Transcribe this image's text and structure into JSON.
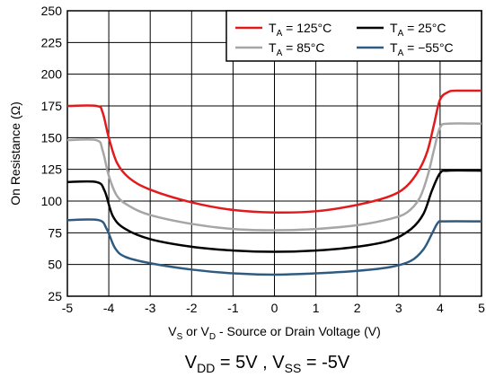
{
  "chart_data": {
    "type": "line",
    "xlabel": {
      "base1": "V",
      "sub1": "S",
      "mid": " or V",
      "sub2": "D",
      "rest": " - Source or Drain Voltage (V)"
    },
    "ylabel": "On Resistance (Ω)",
    "caption": {
      "p1": "V",
      "s1": "DD",
      "p2": " = 5V , V",
      "s2": "SS",
      "p3": " = -5V"
    },
    "xlim": [
      -5,
      5
    ],
    "ylim": [
      25,
      250
    ],
    "xticks": [
      "-5",
      "-4",
      "-3",
      "-2",
      "-1",
      "0",
      "1",
      "2",
      "3",
      "4",
      "5"
    ],
    "yticks": [
      "25",
      "50",
      "75",
      "100",
      "125",
      "150",
      "175",
      "200",
      "225",
      "250"
    ],
    "grid": true,
    "legend_position": "top-right",
    "series": [
      {
        "name": "125°C",
        "legend_prefix": "T",
        "legend_sub": "A",
        "legend_eq": " = ",
        "color": "#e31a1c",
        "x": [
          -5,
          -4.3,
          -4.15,
          -4.0,
          -3.8,
          -3.5,
          -3.0,
          -2.0,
          -1.0,
          0,
          1.0,
          2.0,
          2.8,
          3.2,
          3.5,
          3.7,
          3.85,
          4.0,
          4.2,
          4.4,
          5
        ],
        "y": [
          175,
          175,
          170,
          150,
          130,
          118,
          109,
          99,
          93,
          91,
          92,
          97,
          104,
          112,
          125,
          140,
          160,
          180,
          186,
          187,
          187
        ]
      },
      {
        "name": "25°C",
        "legend_prefix": "T",
        "legend_sub": "A",
        "legend_eq": " = ",
        "color": "#000000",
        "x": [
          -5,
          -4.3,
          -4.1,
          -3.9,
          -3.6,
          -3.0,
          -2.0,
          -1.0,
          0,
          1.0,
          2.0,
          2.8,
          3.3,
          3.6,
          3.8,
          4.0,
          4.2,
          5
        ],
        "y": [
          115,
          115,
          108,
          88,
          78,
          70,
          64,
          61,
          60,
          61,
          64,
          69,
          78,
          90,
          108,
          122,
          124,
          124
        ]
      },
      {
        "name": "85°C",
        "legend_prefix": "T",
        "legend_sub": "A",
        "legend_eq": " = ",
        "color": "#a6a6a6",
        "x": [
          -5,
          -4.3,
          -4.15,
          -4.0,
          -3.8,
          -3.5,
          -3.0,
          -2.0,
          -1.0,
          0,
          1.0,
          2.0,
          2.8,
          3.2,
          3.5,
          3.7,
          3.85,
          4.0,
          4.2,
          5
        ],
        "y": [
          148,
          148,
          140,
          120,
          104,
          96,
          89,
          82,
          78,
          77,
          78,
          81,
          86,
          91,
          102,
          120,
          140,
          158,
          161,
          161
        ]
      },
      {
        "name": "−55°C",
        "legend_prefix": "T",
        "legend_sub": "A",
        "legend_eq": " = ",
        "color": "#2f5b80",
        "x": [
          -5,
          -4.25,
          -4.05,
          -3.85,
          -3.6,
          -3.0,
          -2.0,
          -1.0,
          0,
          1.0,
          2.0,
          2.8,
          3.3,
          3.6,
          3.8,
          3.95,
          4.1,
          5
        ],
        "y": [
          85,
          85,
          78,
          63,
          56,
          51,
          46,
          43,
          42,
          43,
          45,
          48,
          53,
          62,
          74,
          83,
          84,
          84
        ]
      }
    ]
  }
}
